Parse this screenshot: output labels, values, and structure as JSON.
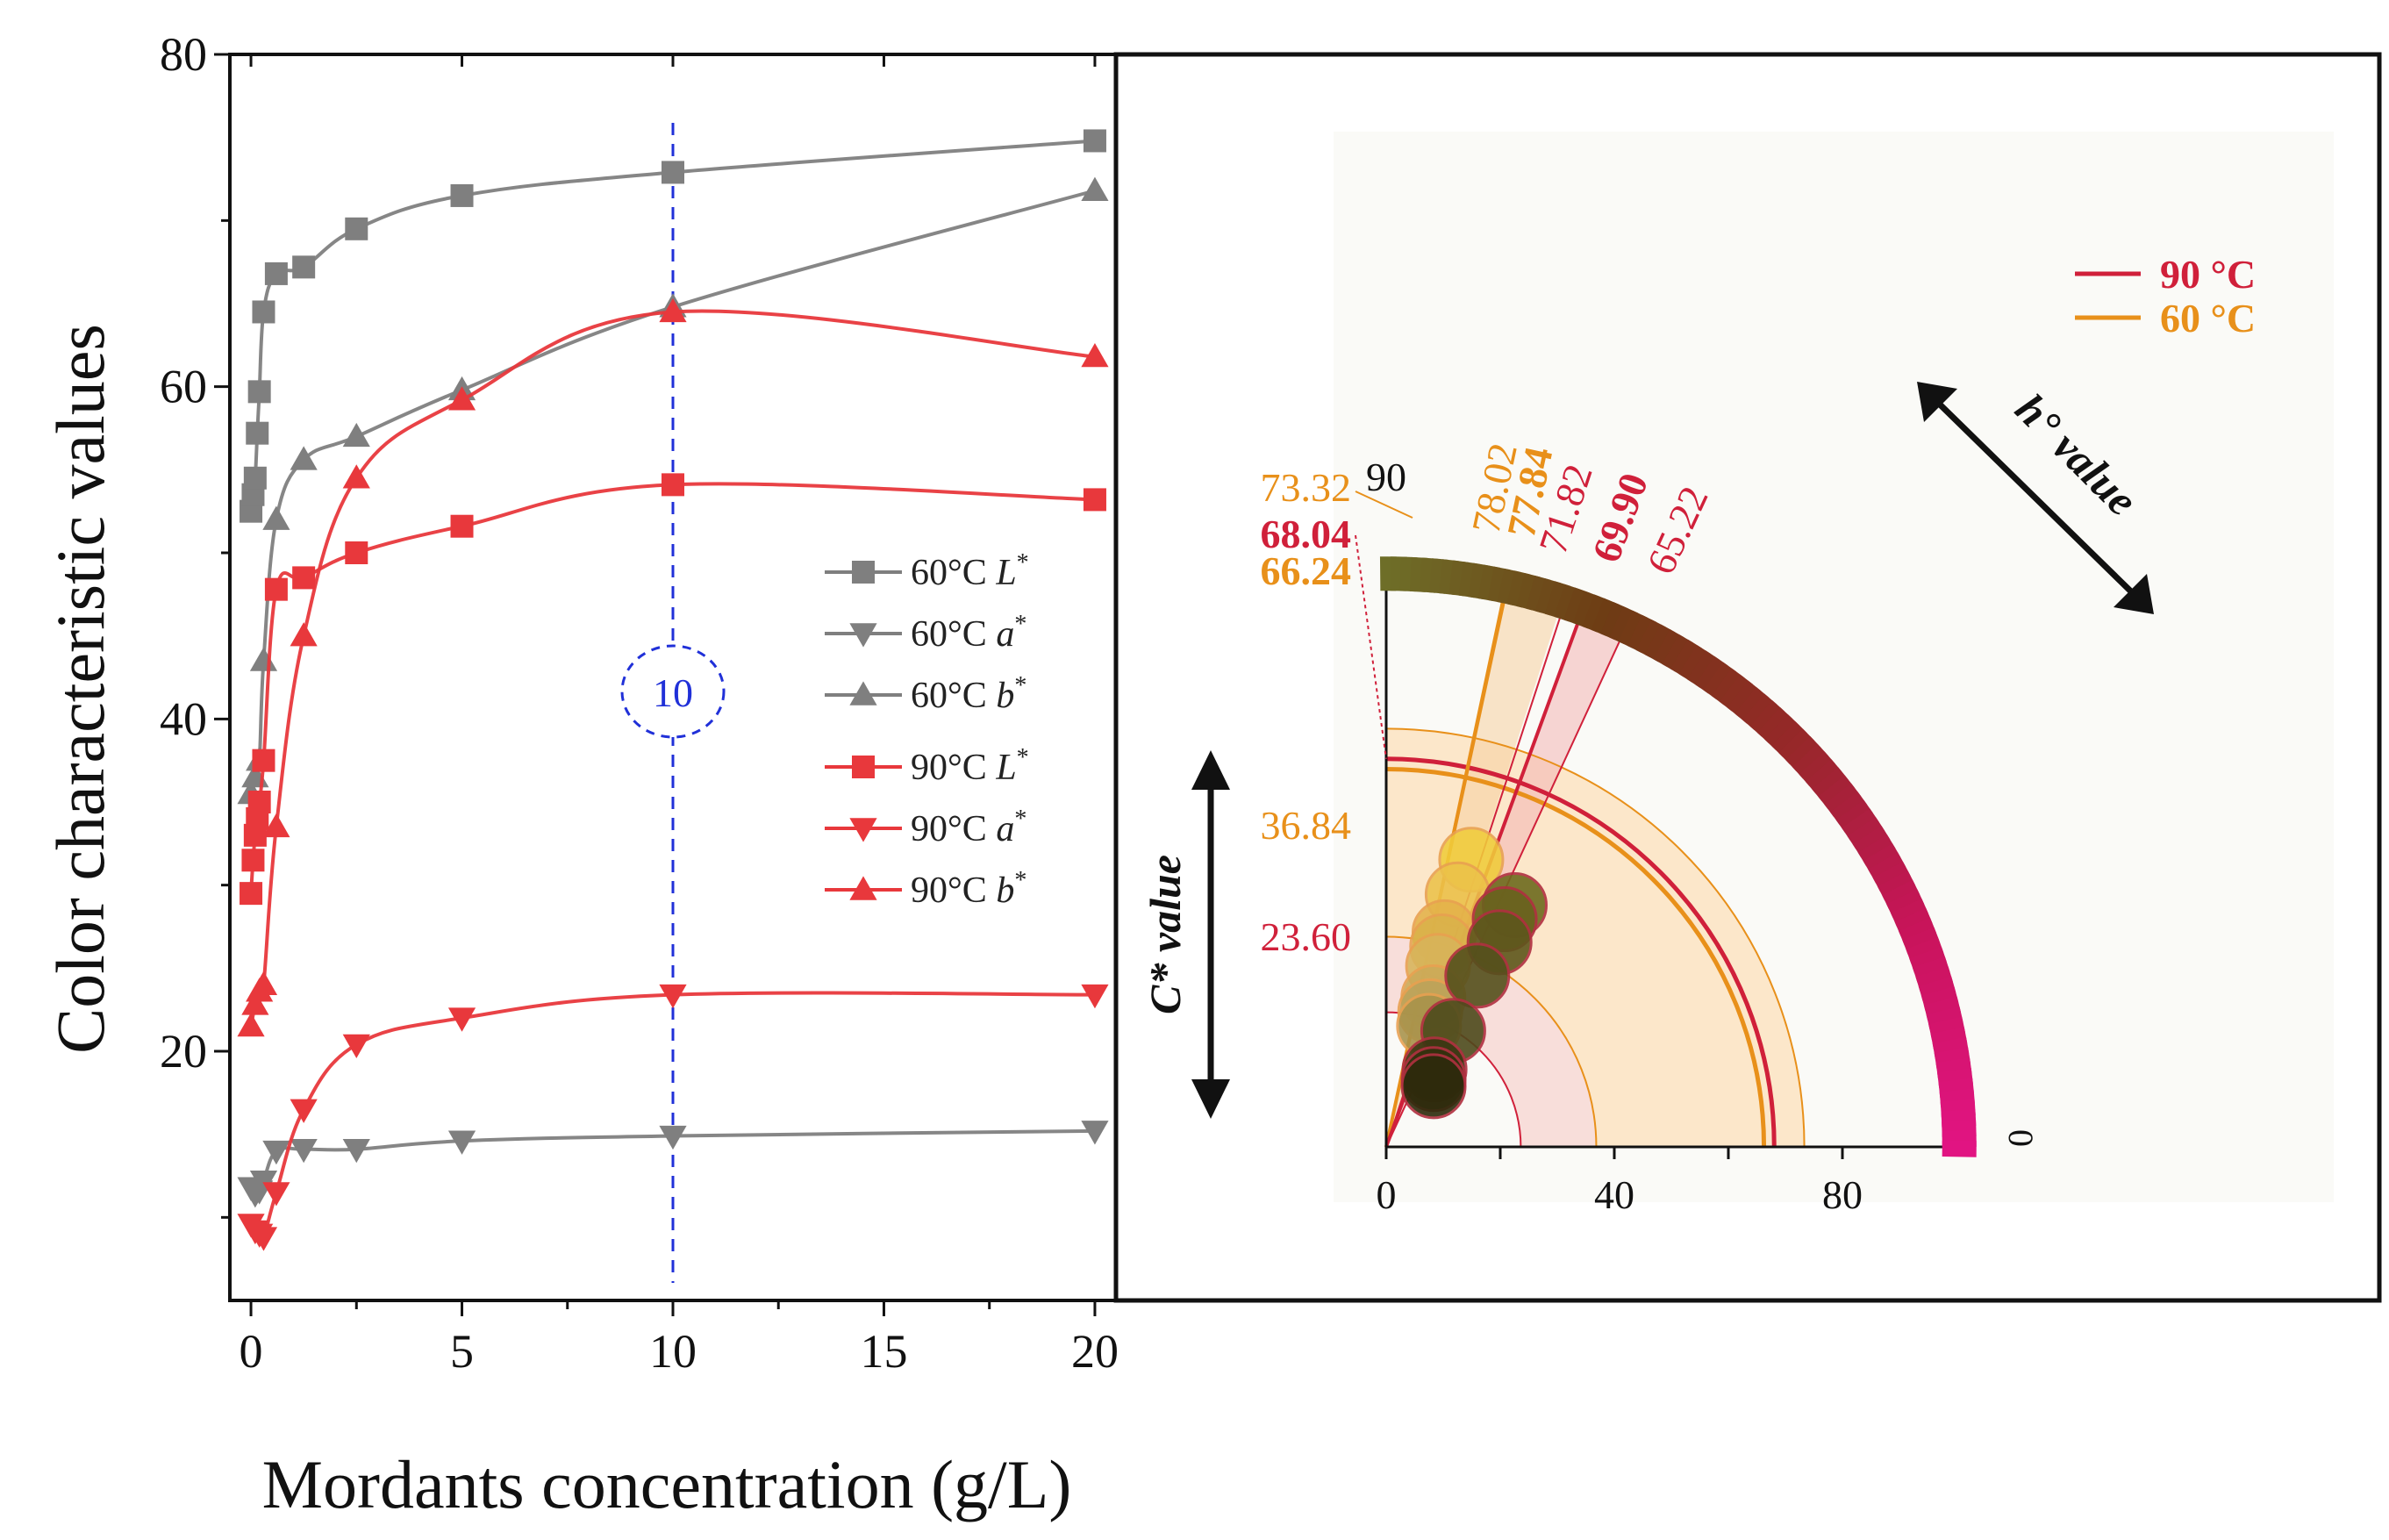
{
  "chart_data": [
    {
      "type": "line",
      "xlabel": "Mordants concentration (g/L)",
      "ylabel": "Color characteristic values",
      "xlim": [
        -0.5,
        20.5
      ],
      "ylim": [
        5,
        80
      ],
      "xticks": [
        0,
        5,
        10,
        15,
        20
      ],
      "yticks": [
        20,
        40,
        60,
        80
      ],
      "legend": "center-right",
      "highlight": {
        "x": 10,
        "label": "10"
      },
      "series": [
        {
          "name": "60°C",
          "var": "L",
          "marker": "square",
          "color": "#7f7f7f",
          "x": [
            0,
            0.05,
            0.1,
            0.15,
            0.2,
            0.3,
            0.6,
            1.25,
            2.5,
            5,
            10,
            20
          ],
          "y": [
            52.5,
            53.5,
            54.5,
            57.2,
            59.7,
            64.5,
            66.8,
            67.2,
            69.5,
            71.5,
            72.9,
            74.8
          ]
        },
        {
          "name": "60°C",
          "var": "a",
          "marker": "triangle-down",
          "color": "#7f7f7f",
          "x": [
            0,
            0.1,
            0.2,
            0.3,
            0.6,
            1.25,
            2.5,
            5,
            10,
            20
          ],
          "y": [
            11.8,
            11.4,
            11.6,
            12.2,
            14.0,
            14.1,
            14.1,
            14.6,
            14.9,
            15.2
          ]
        },
        {
          "name": "60°C",
          "var": "b",
          "marker": "triangle-up",
          "color": "#7f7f7f",
          "x": [
            0,
            0.1,
            0.2,
            0.3,
            0.6,
            1.25,
            2.5,
            5,
            10,
            20
          ],
          "y": [
            35.5,
            36.5,
            37.5,
            43.5,
            52.0,
            55.6,
            57.0,
            59.8,
            64.8,
            71.8
          ]
        },
        {
          "name": "90°C",
          "var": "L",
          "marker": "square",
          "color": "#e8383c",
          "x": [
            0,
            0.05,
            0.1,
            0.15,
            0.2,
            0.3,
            0.6,
            1.25,
            2.5,
            5,
            10,
            20
          ],
          "y": [
            29.5,
            31.5,
            33.0,
            34.0,
            35.0,
            37.5,
            47.8,
            48.5,
            50.0,
            51.6,
            54.1,
            53.2
          ]
        },
        {
          "name": "90°C",
          "var": "a",
          "marker": "triangle-down",
          "color": "#e8383c",
          "x": [
            0,
            0.1,
            0.2,
            0.3,
            0.6,
            1.25,
            2.5,
            5,
            10,
            20
          ],
          "y": [
            9.6,
            9.2,
            9.0,
            8.8,
            11.5,
            16.5,
            20.4,
            22.0,
            23.4,
            23.4
          ]
        },
        {
          "name": "90°C",
          "var": "b",
          "marker": "triangle-up",
          "color": "#e8383c",
          "x": [
            0,
            0.1,
            0.2,
            0.3,
            0.6,
            1.25,
            2.5,
            5,
            10,
            20
          ],
          "y": [
            21.5,
            22.8,
            23.6,
            24.0,
            33.5,
            45.0,
            54.5,
            59.2,
            64.5,
            61.8
          ]
        }
      ]
    },
    {
      "type": "scatter",
      "subtype": "polar-quadrant",
      "rlim": [
        0,
        100
      ],
      "hue_range": [
        0,
        90
      ],
      "ticks": [
        "0",
        "40",
        "80"
      ],
      "hue_labels": {
        "top": "90",
        "right": "0"
      },
      "hue_axis_label": "h° value",
      "chroma_axis_label": "C* value",
      "legend": [
        {
          "name": "90 °C",
          "color": "#d0203a"
        },
        {
          "name": "60 °C",
          "color": "#e8901a"
        }
      ],
      "hue_lines": [
        {
          "label": "78.02",
          "angle": 78.02,
          "series": "60 °C",
          "color": "#e8901a"
        },
        {
          "label": "77.84",
          "angle": 77.84,
          "series": "60 °C",
          "color": "#e8901a",
          "bold": true
        },
        {
          "label": "71.82",
          "angle": 71.82,
          "series": "90 °C",
          "color": "#d0203a"
        },
        {
          "label": "69.90",
          "angle": 69.9,
          "series": "90 °C",
          "color": "#d0203a",
          "bold": true
        },
        {
          "label": "65.22",
          "angle": 65.22,
          "series": "90 °C",
          "color": "#d0203a"
        }
      ],
      "chroma_rings": [
        {
          "label": "73.32",
          "r": 73.32,
          "color": "#e8901a"
        },
        {
          "label": "68.04",
          "r": 68.04,
          "color": "#d0203a",
          "bold": true
        },
        {
          "label": "66.24",
          "r": 66.24,
          "color": "#e8901a",
          "bold": true
        },
        {
          "label": "36.84",
          "r": 36.84,
          "color": "#e8901a"
        },
        {
          "label": "23.60",
          "r": 23.6,
          "color": "#d0203a"
        }
      ],
      "points_60C": [
        {
          "C": 52.5,
          "h": 73.5,
          "fill": "#f0cc3a"
        },
        {
          "C": 46.0,
          "h": 74.2,
          "fill": "#ecc24a"
        },
        {
          "C": 39.0,
          "h": 74.8,
          "fill": "#e4b24a"
        },
        {
          "C": 36.5,
          "h": 74.4,
          "fill": "#dab24a"
        },
        {
          "C": 33.0,
          "h": 74.0,
          "fill": "#d8b45a"
        },
        {
          "C": 27.5,
          "h": 72.5,
          "fill": "#ccaa58"
        },
        {
          "C": 25.0,
          "h": 72.0,
          "fill": "#bca35a"
        },
        {
          "C": 22.5,
          "h": 70.5,
          "fill": "#a8924a"
        }
      ],
      "points_90C": [
        {
          "C": 48.0,
          "h": 62.0,
          "fill": "#6e6a1e"
        },
        {
          "C": 45.0,
          "h": 62.5,
          "fill": "#6a621e"
        },
        {
          "C": 41.0,
          "h": 61.0,
          "fill": "#5e561c"
        },
        {
          "C": 34.0,
          "h": 62.0,
          "fill": "#55501c"
        },
        {
          "C": 23.5,
          "h": 60.0,
          "fill": "#4e4a1c"
        },
        {
          "C": 16.0,
          "h": 58.0,
          "fill": "#3c3612"
        },
        {
          "C": 14.5,
          "h": 55.0,
          "fill": "#34300e"
        },
        {
          "C": 13.5,
          "h": 52.0,
          "fill": "#2e2a0c"
        }
      ]
    }
  ]
}
